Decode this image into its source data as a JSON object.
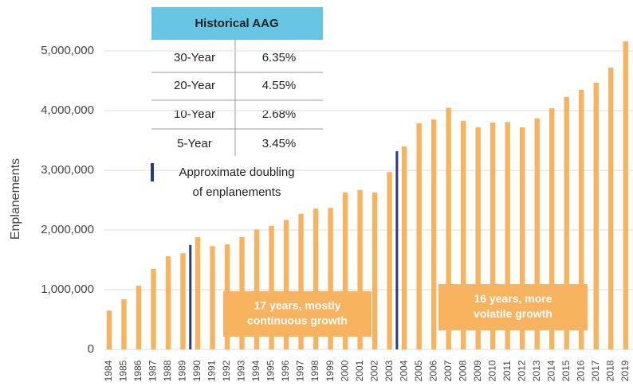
{
  "chart_data": {
    "type": "bar",
    "y_label": "Enplanements",
    "categories": [
      "1984",
      "1985",
      "1986",
      "1987",
      "1988",
      "1989",
      "1990",
      "1991",
      "1992",
      "1993",
      "1994",
      "1995",
      "1996",
      "1997",
      "1998",
      "1999",
      "2000",
      "2001",
      "2002",
      "2003",
      "2004",
      "2005",
      "2006",
      "2007",
      "2008",
      "2009",
      "2010",
      "2011",
      "2012",
      "2013",
      "2014",
      "2015",
      "2016",
      "2017",
      "2018",
      "2019"
    ],
    "values": [
      650000,
      840000,
      1070000,
      1350000,
      1560000,
      1610000,
      1880000,
      1730000,
      1760000,
      1880000,
      2010000,
      2070000,
      2170000,
      2270000,
      2360000,
      2370000,
      2630000,
      2670000,
      2630000,
      2970000,
      3400000,
      3790000,
      3850000,
      4050000,
      3830000,
      3720000,
      3800000,
      3810000,
      3720000,
      3870000,
      4040000,
      4230000,
      4350000,
      4470000,
      4720000,
      5160000
    ],
    "color": "#f8b35e",
    "ylim": [
      0,
      5200000
    ],
    "yticks": [
      0,
      {
        "value": 1000000,
        "label": "1,000,000"
      },
      {
        "value": 2000000,
        "label": "2,000,000"
      },
      {
        "value": 3000000,
        "label": "3,000,000"
      },
      {
        "value": 4000000,
        "label": "4,000,000"
      },
      {
        "value": 5000000,
        "label": "5,000,000"
      }
    ],
    "grid": true,
    "doubling_markers": {
      "label": [
        "Approximate doubling",
        "of enplanements"
      ],
      "color": "#243a8c",
      "values": [
        1750000,
        3320000
      ],
      "after_categories": [
        "1989",
        "2003"
      ]
    },
    "table": {
      "title": "Historical AAG",
      "header_color": "#66c6e3",
      "rows": [
        [
          "30-Year",
          "6.35%"
        ],
        [
          "20-Year",
          "4.55%"
        ],
        [
          "10-Year",
          "2.68%"
        ],
        [
          "5-Year",
          "3.45%"
        ]
      ]
    },
    "annotations": [
      {
        "lines": [
          "17 years, mostly",
          "continuous growth"
        ]
      },
      {
        "lines": [
          "16 years, more",
          "volatile growth"
        ]
      }
    ]
  }
}
